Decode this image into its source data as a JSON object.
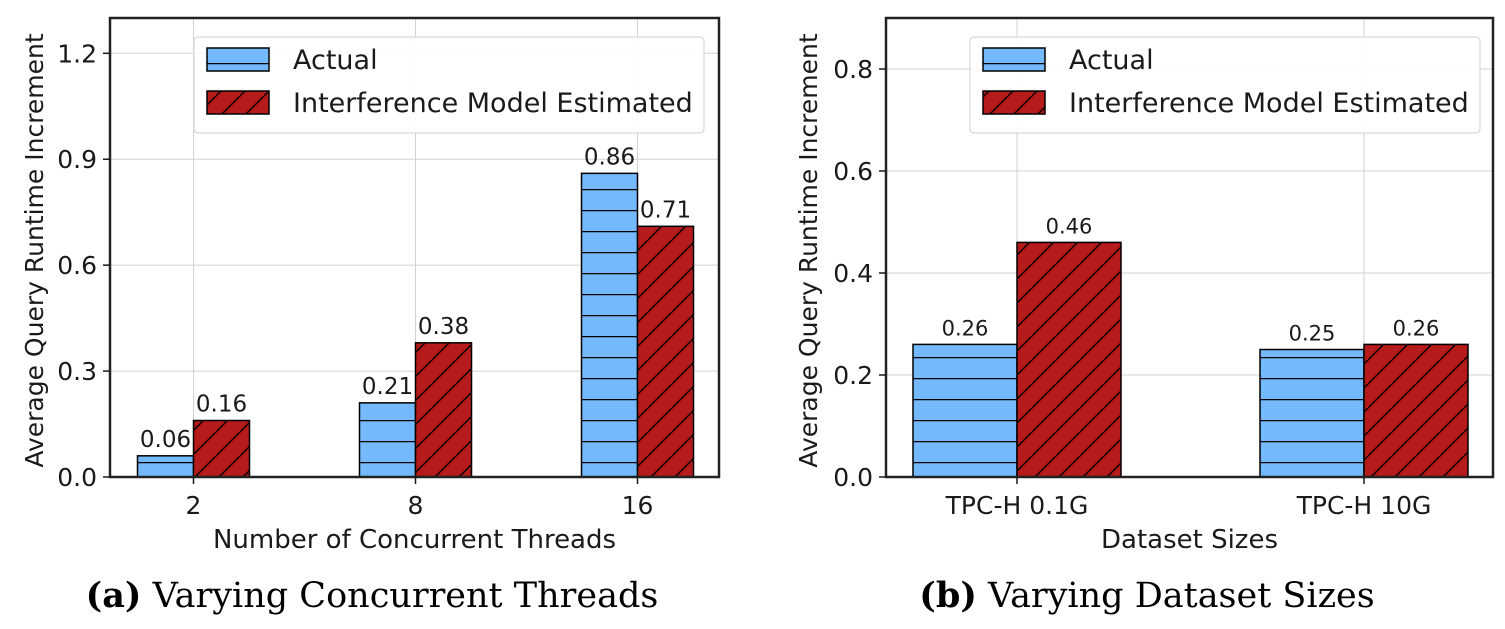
{
  "colors": {
    "actual": "#74b9fc",
    "estimated": "#b51b1b",
    "grid": "#d2d2d2",
    "axis": "#1a1a1a"
  },
  "panels": [
    {
      "label_letter": "(a)",
      "label_text": " Varying Concurrent Threads"
    },
    {
      "label_letter": "(b)",
      "label_text": " Varying Dataset Sizes"
    }
  ],
  "chart_data": [
    {
      "type": "bar",
      "title": "",
      "xlabel": "Number of Concurrent Threads",
      "ylabel": "Average Query Runtime Increment",
      "categories": [
        "2",
        "8",
        "16"
      ],
      "ylim": [
        0,
        1.3
      ],
      "yticks": [
        0.0,
        0.3,
        0.6,
        0.9,
        1.2
      ],
      "ytick_labels": [
        "0.0",
        "0.3",
        "0.6",
        "0.9",
        "1.2"
      ],
      "grid": true,
      "legend_position": "top-right",
      "series": [
        {
          "name": "Actual",
          "key": "actual",
          "hatch": "horizontal",
          "values": [
            0.06,
            0.21,
            0.86
          ],
          "labels": [
            "0.06",
            "0.21",
            "0.86"
          ]
        },
        {
          "name": "Interference Model Estimated",
          "key": "estimated",
          "hatch": "diagonal",
          "values": [
            0.16,
            0.38,
            0.71
          ],
          "labels": [
            "0.16",
            "0.38",
            "0.71"
          ]
        }
      ]
    },
    {
      "type": "bar",
      "title": "",
      "xlabel": "Dataset Sizes",
      "ylabel": "Average Query Runtime Increment",
      "categories": [
        "TPC-H 0.1G",
        "TPC-H 10G"
      ],
      "ylim": [
        0,
        0.9
      ],
      "yticks": [
        0.0,
        0.2,
        0.4,
        0.6,
        0.8
      ],
      "ytick_labels": [
        "0.0",
        "0.2",
        "0.4",
        "0.6",
        "0.8"
      ],
      "grid": true,
      "legend_position": "top-right",
      "series": [
        {
          "name": "Actual",
          "key": "actual",
          "hatch": "horizontal",
          "values": [
            0.26,
            0.25
          ],
          "labels": [
            "0.26",
            "0.25"
          ]
        },
        {
          "name": "Interference Model Estimated",
          "key": "estimated",
          "hatch": "diagonal",
          "values": [
            0.46,
            0.26
          ],
          "labels": [
            "0.46",
            "0.26"
          ]
        }
      ]
    }
  ]
}
